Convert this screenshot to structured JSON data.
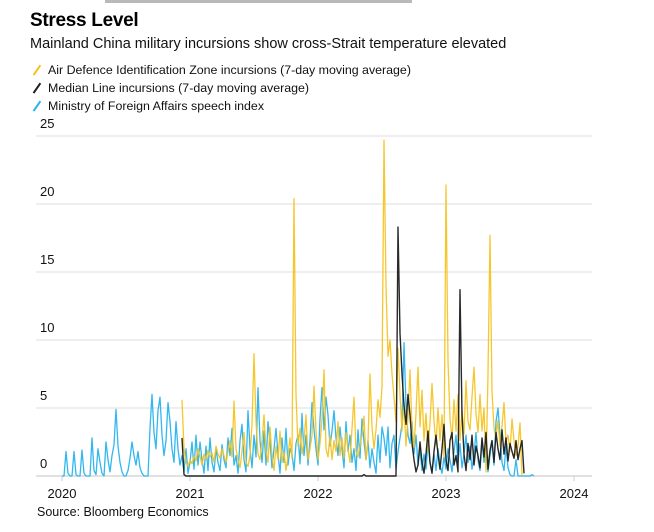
{
  "header": {
    "title": "Stress Level",
    "subtitle": "Mainland China military incursions show cross-Strait temperature elevated"
  },
  "footer": {
    "source": "Source: Bloomberg Economics"
  },
  "chart_data": {
    "type": "line",
    "title": "Stress Level",
    "subtitle": "Mainland China military incursions show cross-Strait temperature elevated",
    "xlabel": "",
    "ylabel": "",
    "xlim": [
      2020.0,
      2024.14
    ],
    "ylim": [
      0,
      25
    ],
    "grid": true,
    "legend_position": "top-left",
    "x_ticks": [
      "2020",
      "2021",
      "2022",
      "2023",
      "2024"
    ],
    "x_tick_values": [
      2020,
      2021,
      2022,
      2023,
      2024
    ],
    "y_ticks": [
      "0",
      "5",
      "10",
      "15",
      "20",
      "25"
    ],
    "y_tick_values": [
      0,
      5,
      10,
      15,
      20,
      25
    ],
    "x_start": 2020.0,
    "x_step_years": 0.015625,
    "series": [
      {
        "name": "Air Defence Identification Zone incursions (7-day moving average)",
        "color": "#F5C21B",
        "start_index": 60,
        "values": [
          5.6,
          2.0,
          1.0,
          0.7,
          1.2,
          0.9,
          1.5,
          1.1,
          2.0,
          1.5,
          0.8,
          1.6,
          1.2,
          1.9,
          1.4,
          1.7,
          1.0,
          2.2,
          1.6,
          1.3,
          2.0,
          1.5,
          1.0,
          1.8,
          2.6,
          1.4,
          5.5,
          2.0,
          1.2,
          0.6,
          1.8,
          3.2,
          1.0,
          0.7,
          1.5,
          3.8,
          9.0,
          4.0,
          1.6,
          1.2,
          2.6,
          4.5,
          1.8,
          1.0,
          3.6,
          1.5,
          0.4,
          2.2,
          1.2,
          3.3,
          1.0,
          1.8,
          0.4,
          1.5,
          2.8,
          1.3,
          20.4,
          6.0,
          2.2,
          3.5,
          1.6,
          2.6,
          4.5,
          1.2,
          2.0,
          3.0,
          6.6,
          3.3,
          1.2,
          2.4,
          4.2,
          7.8,
          2.0,
          1.4,
          3.0,
          1.2,
          2.6,
          1.8,
          4.0,
          1.5,
          2.8,
          1.3,
          3.2,
          2.0,
          1.0,
          3.5,
          5.8,
          1.8,
          1.4,
          2.2,
          3.0,
          4.4,
          1.2,
          2.5,
          7.5,
          3.6,
          2.0,
          3.4,
          5.6,
          4.3,
          6.6,
          24.7,
          14.0,
          8.8,
          10.0,
          7.5,
          5.8,
          4.0,
          9.4,
          6.0,
          3.3,
          5.4,
          2.2,
          4.4,
          7.8,
          3.5,
          2.1,
          4.6,
          8.0,
          3.6,
          6.3,
          2.6,
          4.6,
          1.8,
          3.9,
          6.8,
          4.1,
          2.3,
          5.0,
          2.6,
          4.5,
          1.4,
          21.4,
          8.5,
          4.2,
          2.7,
          5.6,
          3.3,
          6.0,
          2.6,
          4.9,
          3.1,
          7.0,
          4.0,
          3.4,
          5.8,
          8.0,
          4.6,
          3.2,
          6.0,
          3.3,
          5.0,
          0.3,
          7.5,
          17.7,
          6.2,
          3.5,
          2.8,
          4.1,
          2.2,
          3.7,
          5.4,
          2.5,
          3.0,
          1.8,
          4.2,
          2.6,
          1.5,
          2.2,
          3.9,
          0.0
        ]
      },
      {
        "name": "Median Line incursions (7-day moving average)",
        "color": "#1E1E1E",
        "start_index": 60,
        "values": [
          2.8,
          0.1,
          0,
          0,
          0,
          0,
          0,
          0,
          0,
          0,
          0,
          0,
          0,
          0,
          0,
          0,
          0,
          0,
          0,
          0,
          0,
          0,
          0,
          0,
          0,
          0,
          0,
          0,
          0,
          0,
          0,
          0,
          0,
          0,
          0,
          0,
          0,
          0,
          0,
          0,
          0,
          0,
          0,
          0,
          0,
          0,
          0,
          0,
          0,
          0,
          0,
          0,
          0,
          0,
          0,
          0,
          0,
          0,
          0,
          0,
          0,
          0,
          0,
          0,
          0,
          0,
          0,
          0,
          0,
          0,
          0,
          0,
          0,
          0,
          0,
          0,
          0,
          0,
          0,
          0,
          0,
          0,
          0,
          0,
          0,
          0,
          0,
          0,
          0,
          0,
          0,
          0.1,
          0,
          0,
          0,
          0,
          0,
          0,
          0,
          0,
          0,
          0,
          0,
          0,
          0,
          0,
          0,
          0,
          18.3,
          10.5,
          7.5,
          5.2,
          3.8,
          6.0,
          4.5,
          2.4,
          1.2,
          0.3,
          0.8,
          2.5,
          1.0,
          0.2,
          1.6,
          3.3,
          1.0,
          0.2,
          1.8,
          3.0,
          1.6,
          0.5,
          2.0,
          3.8,
          1.2,
          0.4,
          2.6,
          3.2,
          0.8,
          1.5,
          0.3,
          13.7,
          4.5,
          1.6,
          0.4,
          2.4,
          1.2,
          3.0,
          0.8,
          2.2,
          1.5,
          0.6,
          2.8,
          1.4,
          3.2,
          0.5,
          1.9,
          2.6,
          1.0,
          3.2,
          2.0,
          1.2,
          3.4,
          1.6,
          2.8,
          1.1,
          2.4,
          1.8,
          1.3,
          2.6,
          1.2,
          2.0,
          2.6,
          0.2
        ]
      },
      {
        "name": "Ministry of Foreign Affairs speech index",
        "color": "#27B3EE",
        "start_index": 0,
        "values": [
          0,
          0,
          1.8,
          0.2,
          0,
          0,
          1.8,
          0.1,
          0,
          0,
          1.9,
          0.2,
          0,
          0,
          0,
          2.8,
          0.4,
          0.1,
          2.0,
          1.0,
          0.2,
          0,
          2.5,
          1.2,
          0.3,
          1.5,
          2.3,
          4.9,
          2.2,
          1.0,
          0.3,
          0,
          0,
          0.4,
          1.3,
          2.5,
          1.5,
          0.8,
          1.8,
          0.6,
          0.2,
          0,
          0,
          0,
          3.5,
          6.0,
          3.2,
          2.0,
          4.8,
          5.8,
          3.0,
          1.5,
          2.6,
          5.4,
          4.0,
          2.0,
          1.0,
          4.0,
          2.0,
          0.8,
          1.5,
          0.3,
          2.0,
          0.2,
          1.0,
          2.5,
          0.5,
          3.0,
          0.8,
          2.5,
          1.2,
          0.2,
          2.2,
          0.4,
          2.8,
          1.0,
          0.3,
          2.0,
          1.0,
          0.4,
          2.3,
          1.2,
          0.6,
          2.8,
          1.5,
          3.5,
          0.8,
          1.5,
          0.2,
          2.6,
          3.8,
          1.2,
          0.3,
          4.8,
          2.0,
          0.6,
          3.0,
          1.4,
          6.5,
          2.6,
          1.0,
          3.3,
          0.8,
          4.0,
          2.5,
          0.6,
          2.0,
          3.5,
          1.6,
          0.2,
          2.8,
          1.0,
          3.5,
          0.8,
          2.0,
          1.6,
          0.4,
          2.4,
          3.0,
          0.9,
          4.6,
          1.5,
          3.0,
          0.8,
          2.6,
          5.4,
          3.4,
          2.0,
          0.8,
          4.2,
          6.5,
          3.4,
          5.8,
          4.5,
          2.2,
          3.3,
          4.8,
          2.8,
          1.5,
          3.6,
          2.0,
          0.6,
          4.0,
          1.8,
          3.0,
          1.0,
          2.0,
          0.4,
          3.4,
          1.3,
          4.2,
          2.5,
          1.2,
          2.6,
          0.6,
          2.0,
          1.0,
          0.2,
          3.0,
          1.0,
          3.6,
          2.8,
          1.5,
          3.6,
          0.6,
          2.4,
          3.0,
          0.5,
          1.8,
          2.8,
          3.8,
          9.8,
          5.2,
          3.0,
          2.4,
          4.0,
          1.6,
          3.0,
          0.8,
          2.0,
          0.4,
          1.6,
          0.5,
          2.5,
          1.0,
          0.3,
          1.6,
          0.4,
          2.0,
          0.8,
          0.2,
          1.4,
          0.5,
          2.0,
          1.2,
          0.3,
          1.8,
          3.0,
          1.0,
          2.4,
          0.6,
          1.6,
          3.0,
          1.0,
          2.2,
          0.5,
          1.6,
          3.2,
          1.2,
          0.4,
          2.6,
          1.0,
          2.0,
          0.3,
          1.5,
          2.6,
          0.8,
          4.0,
          5.0,
          3.0,
          1.0,
          0.4,
          2.2,
          0.6,
          0.1,
          0,
          0,
          1.2,
          0,
          0,
          0,
          0,
          0,
          0,
          0,
          0.1,
          0
        ]
      }
    ]
  }
}
